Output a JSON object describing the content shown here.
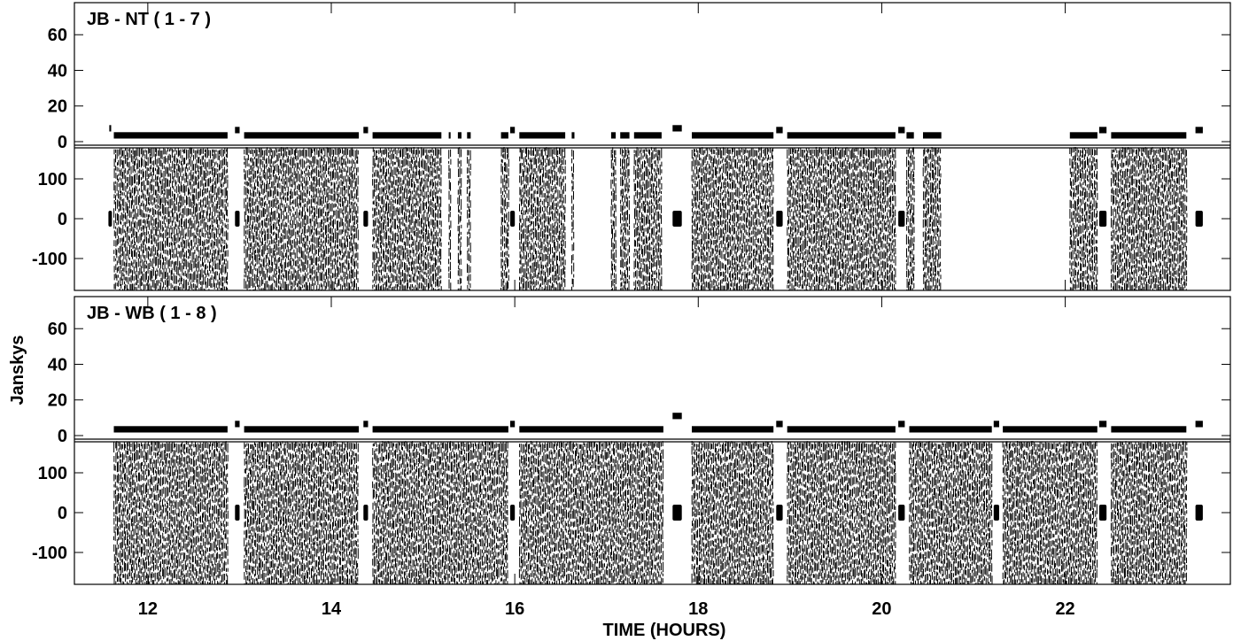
{
  "chart_data": {
    "type": "line",
    "x_range": [
      11.2,
      23.8
    ],
    "xlabel": "TIME (HOURS)",
    "ylabel": "Janskys",
    "x_ticks": [
      12,
      14,
      16,
      18,
      20,
      22
    ],
    "x_tick_labels": [
      "12",
      "14",
      "16",
      "18",
      "20",
      "22"
    ],
    "panels": [
      {
        "title": "JB - NT ( 1 - 7 )",
        "amplitude": {
          "ylim": [
            -2,
            78
          ],
          "y_ticks": [
            0,
            20,
            40,
            60
          ],
          "y_tick_labels": [
            "0",
            "20",
            "40",
            "60"
          ]
        },
        "phase": {
          "ylim": [
            -180,
            180
          ],
          "y_ticks": [
            -100,
            0,
            100
          ],
          "y_tick_labels": [
            "-100",
            "0",
            "100"
          ]
        },
        "scans": [
          {
            "start": 11.58,
            "end": 11.6,
            "amp": 7.5,
            "calibrator": true
          },
          {
            "start": 11.63,
            "end": 12.87,
            "amp": 3.5
          },
          {
            "start": 12.95,
            "end": 13.0,
            "amp": 6.5,
            "calibrator": true
          },
          {
            "start": 13.05,
            "end": 14.3,
            "amp": 3.5
          },
          {
            "start": 14.35,
            "end": 14.4,
            "amp": 6.5,
            "calibrator": true
          },
          {
            "start": 14.45,
            "end": 15.2,
            "amp": 3.5
          },
          {
            "start": 15.28,
            "end": 15.3,
            "amp": 3.5
          },
          {
            "start": 15.38,
            "end": 15.42,
            "amp": 3.5
          },
          {
            "start": 15.48,
            "end": 15.52,
            "amp": 3.5
          },
          {
            "start": 15.85,
            "end": 15.93,
            "amp": 3.5
          },
          {
            "start": 15.95,
            "end": 16.0,
            "amp": 6.5,
            "calibrator": true
          },
          {
            "start": 16.05,
            "end": 16.55,
            "amp": 3.5
          },
          {
            "start": 16.62,
            "end": 16.65,
            "amp": 3.5
          },
          {
            "start": 17.05,
            "end": 17.1,
            "amp": 3.5
          },
          {
            "start": 17.15,
            "end": 17.25,
            "amp": 3.5
          },
          {
            "start": 17.3,
            "end": 17.6,
            "amp": 3.5
          },
          {
            "start": 17.72,
            "end": 17.82,
            "amp": 7.5,
            "calibrator": true
          },
          {
            "start": 17.93,
            "end": 18.82,
            "amp": 3.5
          },
          {
            "start": 18.85,
            "end": 18.92,
            "amp": 6.5,
            "calibrator": true
          },
          {
            "start": 18.97,
            "end": 20.15,
            "amp": 3.5
          },
          {
            "start": 20.18,
            "end": 20.25,
            "amp": 6.5,
            "calibrator": true
          },
          {
            "start": 20.27,
            "end": 20.35,
            "amp": 3.5
          },
          {
            "start": 20.45,
            "end": 20.65,
            "amp": 3.5
          },
          {
            "start": 22.05,
            "end": 22.35,
            "amp": 3.5
          },
          {
            "start": 22.37,
            "end": 22.45,
            "amp": 6.5,
            "calibrator": true
          },
          {
            "start": 22.5,
            "end": 23.32,
            "amp": 3.5
          },
          {
            "start": 23.42,
            "end": 23.5,
            "amp": 6.5,
            "calibrator": true
          }
        ]
      },
      {
        "title": "JB - WB ( 1 - 8 )",
        "amplitude": {
          "ylim": [
            -2,
            78
          ],
          "y_ticks": [
            0,
            20,
            40,
            60
          ],
          "y_tick_labels": [
            "0",
            "20",
            "40",
            "60"
          ]
        },
        "phase": {
          "ylim": [
            -180,
            180
          ],
          "y_ticks": [
            -100,
            0,
            100
          ],
          "y_tick_labels": [
            "-100",
            "0",
            "100"
          ]
        },
        "scans": [
          {
            "start": 11.63,
            "end": 12.87,
            "amp": 3.5
          },
          {
            "start": 12.95,
            "end": 13.0,
            "amp": 6.5,
            "calibrator": true
          },
          {
            "start": 13.05,
            "end": 14.3,
            "amp": 3.5
          },
          {
            "start": 14.35,
            "end": 14.4,
            "amp": 6.5,
            "calibrator": true
          },
          {
            "start": 14.45,
            "end": 15.93,
            "amp": 3.5
          },
          {
            "start": 15.95,
            "end": 16.0,
            "amp": 6.5,
            "calibrator": true
          },
          {
            "start": 16.05,
            "end": 17.62,
            "amp": 3.5
          },
          {
            "start": 17.72,
            "end": 17.82,
            "amp": 11,
            "calibrator": true
          },
          {
            "start": 17.93,
            "end": 18.82,
            "amp": 3.5
          },
          {
            "start": 18.85,
            "end": 18.92,
            "amp": 6.5,
            "calibrator": true
          },
          {
            "start": 18.97,
            "end": 20.15,
            "amp": 3.5
          },
          {
            "start": 20.18,
            "end": 20.25,
            "amp": 6.5,
            "calibrator": true
          },
          {
            "start": 20.3,
            "end": 21.2,
            "amp": 3.5
          },
          {
            "start": 21.22,
            "end": 21.28,
            "amp": 6.5,
            "calibrator": true
          },
          {
            "start": 21.32,
            "end": 22.35,
            "amp": 3.5
          },
          {
            "start": 22.37,
            "end": 22.45,
            "amp": 6.5,
            "calibrator": true
          },
          {
            "start": 22.5,
            "end": 23.32,
            "amp": 3.5
          },
          {
            "start": 23.42,
            "end": 23.5,
            "amp": 6.5,
            "calibrator": true
          }
        ]
      }
    ]
  }
}
